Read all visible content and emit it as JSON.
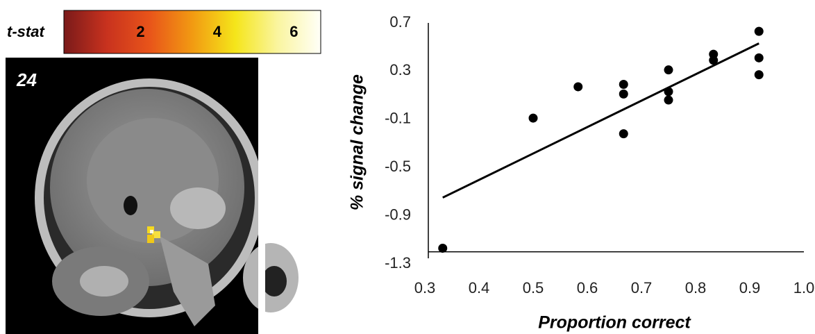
{
  "image": {
    "label": "24"
  },
  "chart_data": [
    {
      "type": "colorbar",
      "title": "t-stat",
      "xlim": [
        0,
        6.7
      ],
      "xticks": [
        2,
        4,
        6
      ],
      "colors": [
        "#7a1a1a",
        "#c8321e",
        "#e8541a",
        "#f29a12",
        "#f5e51a",
        "#faf5a0",
        "#fffff8"
      ]
    },
    {
      "type": "scatter",
      "xlabel": "Proportion correct",
      "ylabel": "% signal change",
      "x": [
        0.333,
        0.5,
        0.583,
        0.667,
        0.667,
        0.667,
        0.75,
        0.75,
        0.75,
        0.833,
        0.833,
        0.917,
        0.917,
        0.917
      ],
      "values": [
        -1.17,
        -0.09,
        0.17,
        0.19,
        0.11,
        -0.22,
        0.31,
        0.13,
        0.06,
        0.44,
        0.39,
        0.63,
        0.41,
        0.27
      ],
      "color": "#000000",
      "trendline": {
        "x": [
          0.333,
          0.917
        ],
        "values": [
          -0.75,
          0.53
        ]
      },
      "xlim": [
        0.3,
        1.0
      ],
      "ylim": [
        -1.3,
        0.7
      ],
      "xaxis_crosses": -1.2,
      "xticks": [
        0.3,
        0.4,
        0.5,
        0.6,
        0.7,
        0.8,
        0.9,
        {
          "value": 1,
          "label": "1.0"
        }
      ],
      "yticks": [
        0.7,
        0.3,
        -0.1,
        -0.5,
        -0.9,
        -1.3
      ]
    }
  ]
}
